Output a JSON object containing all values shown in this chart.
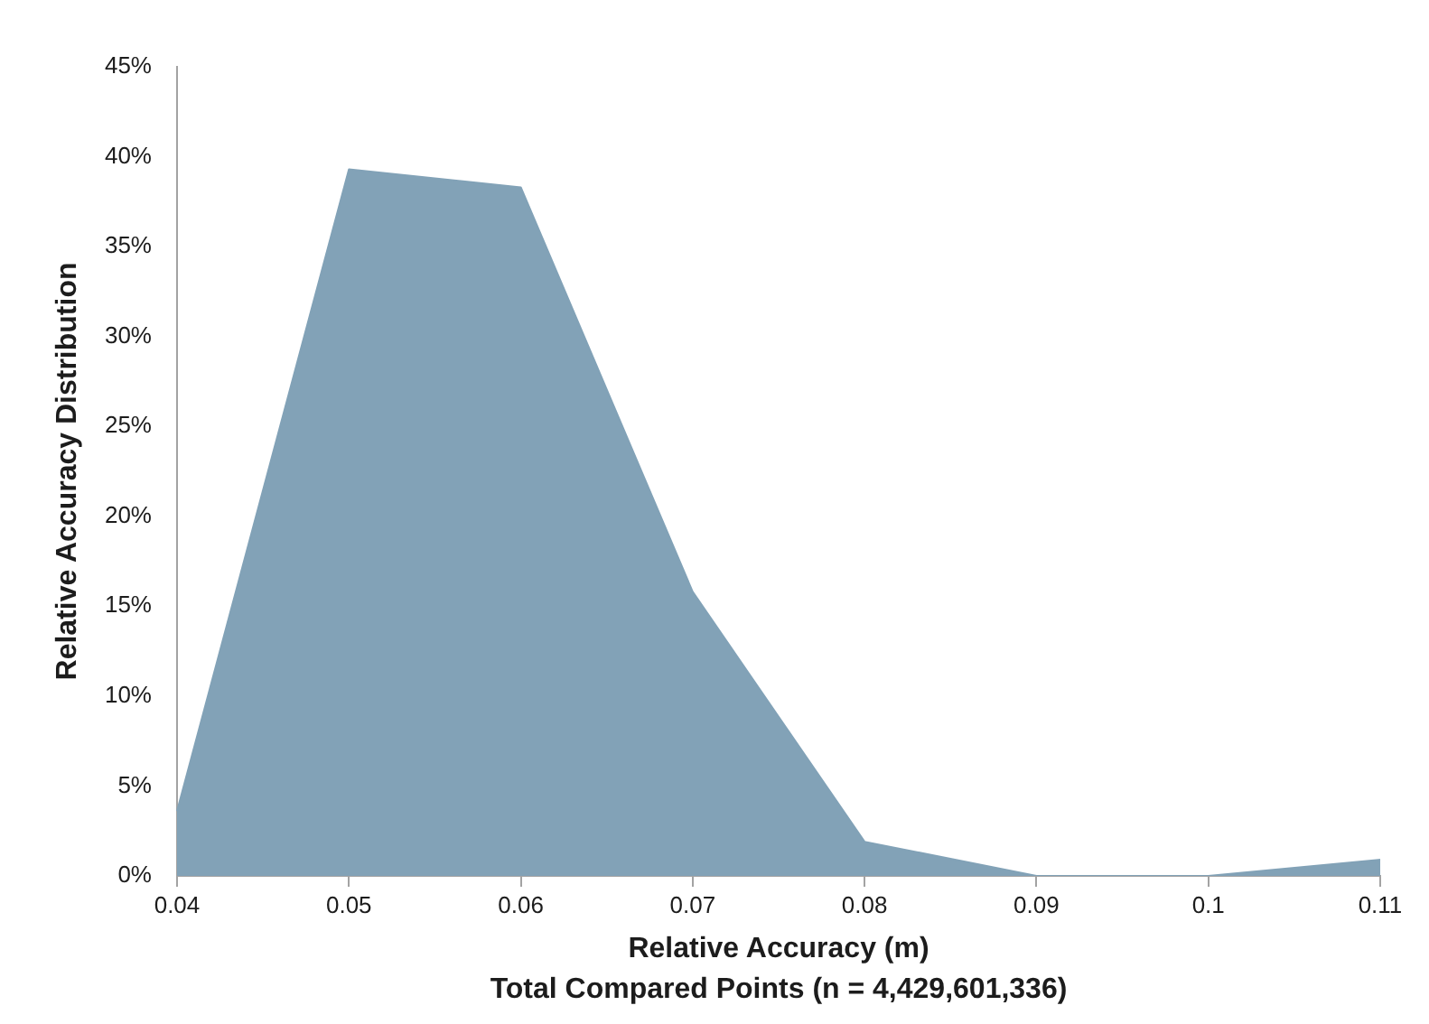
{
  "chart_data": {
    "type": "area",
    "xlabel": "Relative Accuracy (m)",
    "ylabel": "Relative Accuracy Distribution",
    "annotations": [
      "Total Compared Points (n = 4,429,601,336)"
    ],
    "categories": [
      "0.04",
      "0.05",
      "0.06",
      "0.07",
      "0.08",
      "0.09",
      "0.1",
      "0.11"
    ],
    "values": [
      3.6,
      39.3,
      38.3,
      15.8,
      1.9,
      0,
      0,
      0.9
    ],
    "color": "#82a2b7",
    "marker": "none",
    "ylim": [
      0,
      45
    ],
    "yticks": [
      {
        "value": 0,
        "label": "0%"
      },
      {
        "value": 5,
        "label": "5%"
      },
      {
        "value": 10,
        "label": "10%"
      },
      {
        "value": 15,
        "label": "15%"
      },
      {
        "value": 20,
        "label": "20%"
      },
      {
        "value": 25,
        "label": "25%"
      },
      {
        "value": 30,
        "label": "30%"
      },
      {
        "value": 35,
        "label": "35%"
      },
      {
        "value": 40,
        "label": "40%"
      },
      {
        "value": 45,
        "label": "45%"
      }
    ]
  }
}
